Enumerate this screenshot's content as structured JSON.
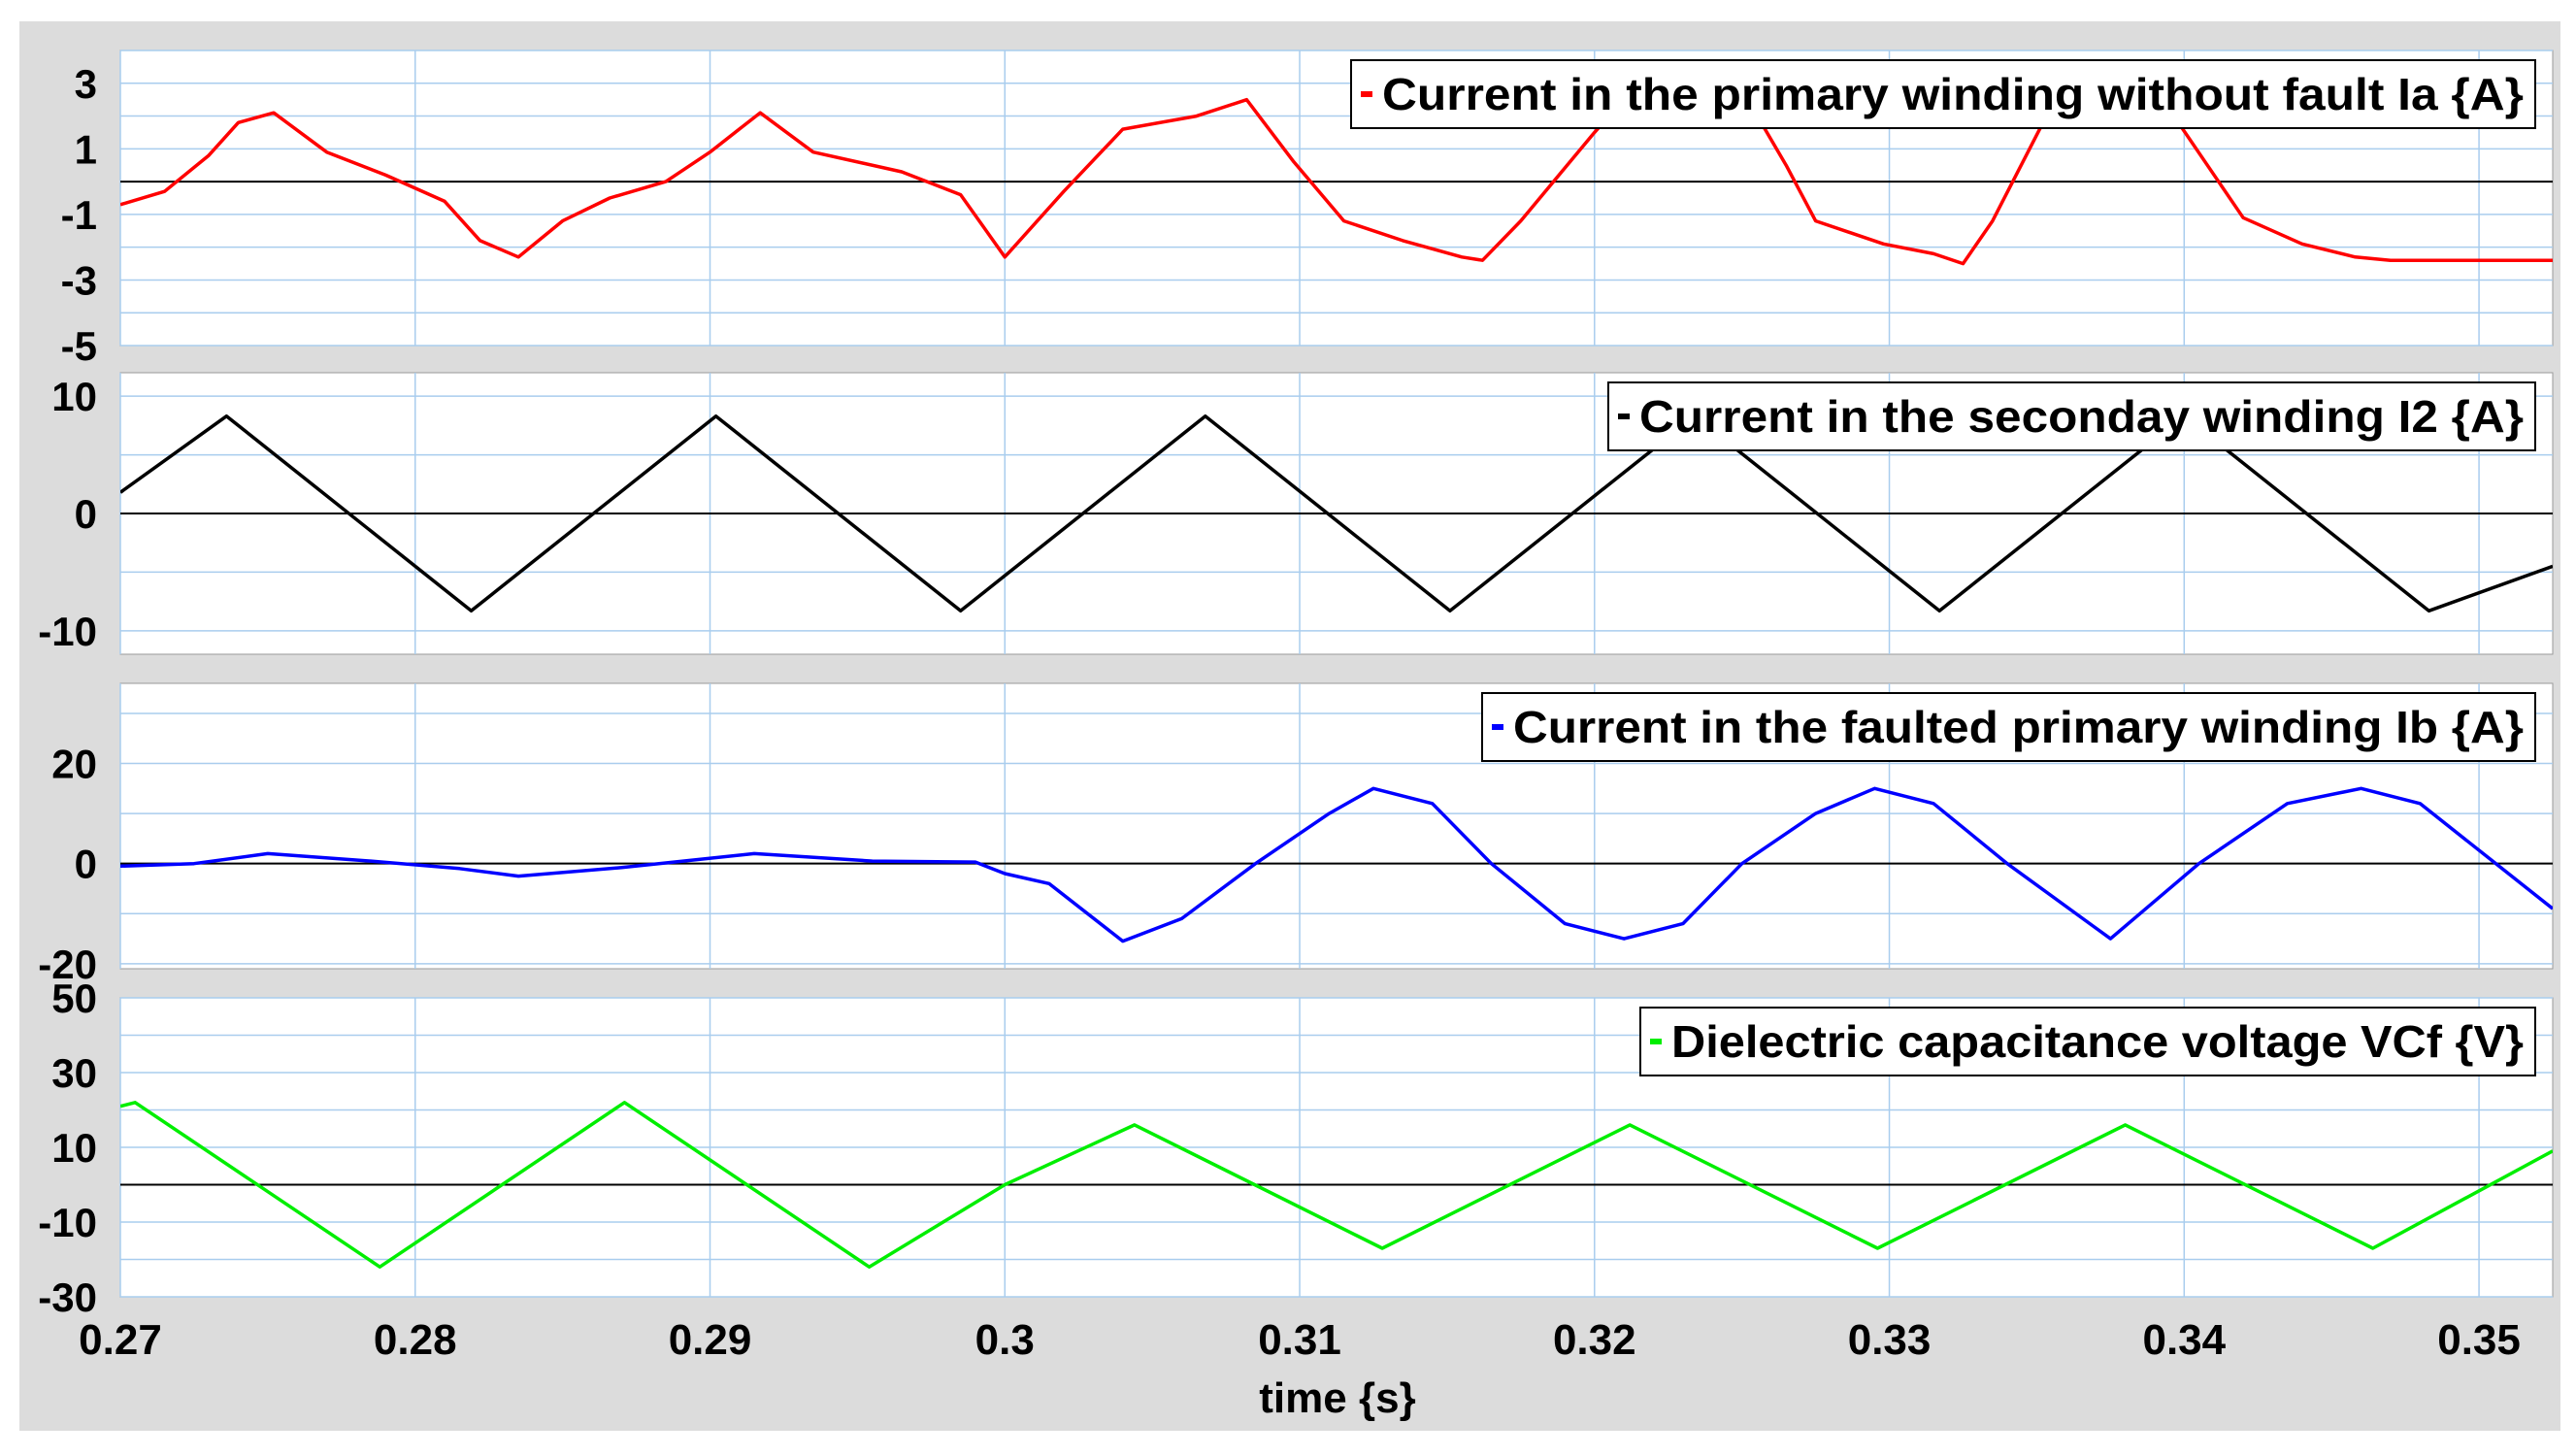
{
  "chart_data": [
    {
      "type": "line",
      "legend": "Current in the primary winding without fault Ia {A}",
      "color": "#ff0000",
      "yticks": [
        "3",
        "1",
        "-1",
        "-3",
        "-5"
      ],
      "tick_values": [
        3,
        1,
        -1,
        -3,
        -5
      ],
      "ylim": [
        -5,
        4
      ],
      "series": [
        {
          "name": "Current in the primary winding without fault Ia {A}",
          "x": [
            0.27,
            0.2715,
            0.273,
            0.274,
            0.2752,
            0.277,
            0.279,
            0.281,
            0.2822,
            0.2835,
            0.285,
            0.2866,
            0.2885,
            0.29,
            0.2917,
            0.2935,
            0.2965,
            0.2985,
            0.3,
            0.302,
            0.304,
            0.3065,
            0.3082,
            0.3098,
            0.3115,
            0.3135,
            0.3155,
            0.3162,
            0.3175,
            0.32,
            0.3215,
            0.323,
            0.325,
            0.3265,
            0.3275,
            0.3298,
            0.3315,
            0.3325,
            0.3335,
            0.3355,
            0.3395,
            0.342,
            0.344,
            0.3458,
            0.347,
            0.3525
          ],
          "y": [
            -0.7,
            -0.3,
            0.8,
            1.8,
            2.1,
            0.9,
            0.2,
            -0.6,
            -1.8,
            -2.3,
            -1.2,
            -0.5,
            0.0,
            0.9,
            2.1,
            0.9,
            0.3,
            -0.4,
            -2.3,
            -0.3,
            1.6,
            2.0,
            2.5,
            0.6,
            -1.2,
            -1.8,
            -2.3,
            -2.4,
            -1.2,
            1.5,
            3.0,
            3.5,
            2.8,
            0.5,
            -1.2,
            -1.9,
            -2.2,
            -2.5,
            -1.2,
            2.3,
            2.2,
            -1.1,
            -1.9,
            -2.3,
            -2.4,
            -2.4
          ]
        }
      ]
    },
    {
      "type": "line",
      "legend": "Current in the seconday winding I2 {A}",
      "color": "#000000",
      "yticks": [
        "10",
        "0",
        "-10"
      ],
      "tick_values": [
        10,
        0,
        -10
      ],
      "ylim": [
        -12,
        12
      ],
      "series": [
        {
          "name": "Current in the seconday winding I2 {A}",
          "x": [
            0.27,
            0.2736,
            0.2819,
            0.2902,
            0.2985,
            0.3068,
            0.3151,
            0.3234,
            0.3317,
            0.34,
            0.3483,
            0.3525
          ],
          "y": [
            1.8,
            8.3,
            -8.3,
            8.3,
            -8.3,
            8.3,
            -8.3,
            8.3,
            -8.3,
            8.3,
            -8.3,
            -4.5
          ]
        }
      ]
    },
    {
      "type": "line",
      "legend": "Current in the faulted primary winding Ib {A}",
      "color": "#0000ff",
      "yticks": [
        "20",
        "0",
        "-20"
      ],
      "tick_values": [
        20,
        0,
        -20
      ],
      "ylim": [
        -21,
        36
      ],
      "series": [
        {
          "name": "Current in the faulted primary winding Ib {A}",
          "x": [
            0.27,
            0.2725,
            0.275,
            0.2785,
            0.2815,
            0.2835,
            0.287,
            0.2915,
            0.2955,
            0.299,
            0.3,
            0.3015,
            0.304,
            0.306,
            0.3085,
            0.311,
            0.3125,
            0.3145,
            0.3165,
            0.319,
            0.321,
            0.323,
            0.325,
            0.3275,
            0.3295,
            0.3315,
            0.334,
            0.3375,
            0.3405,
            0.3435,
            0.346,
            0.348,
            0.3525
          ],
          "y": [
            -0.5,
            0.0,
            2.0,
            0.5,
            -1.0,
            -2.5,
            -0.8,
            2.0,
            0.5,
            0.3,
            -2.0,
            -4.0,
            -15.5,
            -11.0,
            0.0,
            10.0,
            15.0,
            12.0,
            0.0,
            -12.0,
            -15.0,
            -12.0,
            0.0,
            10.0,
            15.0,
            12.0,
            0.0,
            -15.0,
            0.0,
            12.0,
            15.0,
            12.0,
            -9.0
          ]
        }
      ]
    },
    {
      "type": "line",
      "legend": "Dielectric capacitance voltage VCf {V}",
      "color": "#00ee00",
      "yticks": [
        "50",
        "30",
        "10",
        "-10",
        "-30"
      ],
      "tick_values": [
        50,
        30,
        10,
        -10,
        -30
      ],
      "ylim": [
        -30,
        50
      ],
      "series": [
        {
          "name": "Dielectric capacitance voltage VCf {V}",
          "x": [
            0.27,
            0.2705,
            0.2788,
            0.2871,
            0.2954,
            0.3,
            0.3044,
            0.3128,
            0.3212,
            0.3296,
            0.338,
            0.3464,
            0.3525
          ],
          "y": [
            21.0,
            22.0,
            -22.0,
            22.0,
            -22.0,
            0.0,
            16.0,
            -17.0,
            16.0,
            -17.0,
            16.0,
            -17.0,
            9.0
          ]
        }
      ]
    }
  ],
  "x_axis": {
    "ticks": [
      "0.27",
      "0.28",
      "0.29",
      "0.3",
      "0.31",
      "0.32",
      "0.33",
      "0.34",
      "0.35"
    ],
    "tick_values": [
      0.27,
      0.28,
      0.29,
      0.3,
      0.31,
      0.32,
      0.33,
      0.34,
      0.35
    ],
    "xlim": [
      0.27,
      0.3525
    ],
    "label": "time {s}"
  },
  "grid": true,
  "colors": {
    "grid": "#a9cdee",
    "zero_line": "#000000",
    "panel_bg": "#ffffff",
    "frame_bg": "#dcdcdc"
  }
}
